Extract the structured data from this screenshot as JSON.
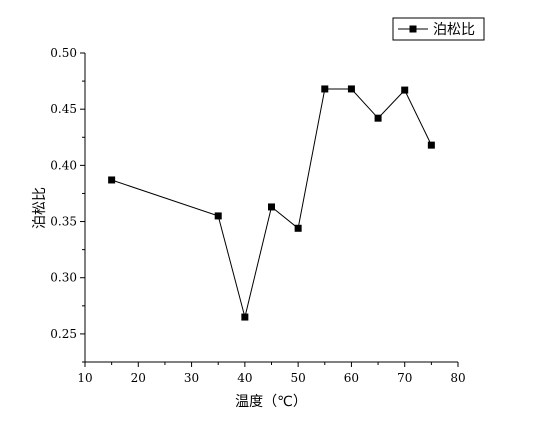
{
  "chart_data": {
    "type": "line",
    "xlabel": "温度（℃）",
    "ylabel": "泊松比",
    "xlim": [
      10,
      80
    ],
    "ylim": [
      0.225,
      0.5
    ],
    "x_ticks": [
      10,
      20,
      30,
      40,
      50,
      60,
      70,
      80
    ],
    "x_tick_labels": [
      "10",
      "20",
      "30",
      "40",
      "50",
      "60",
      "70",
      "80"
    ],
    "y_ticks": [
      0.25,
      0.3,
      0.35,
      0.4,
      0.45,
      0.5
    ],
    "y_tick_labels": [
      "0.25",
      "0.30",
      "0.35",
      "0.40",
      "0.45",
      "0.50"
    ],
    "grid": false,
    "legend_position": "top-right",
    "series": [
      {
        "name": "泊松比",
        "marker": "square",
        "color": "#000000",
        "x": [
          15,
          35,
          40,
          45,
          50,
          55,
          60,
          65,
          70,
          75
        ],
        "y": [
          0.387,
          0.355,
          0.265,
          0.363,
          0.344,
          0.468,
          0.468,
          0.442,
          0.467,
          0.418
        ]
      }
    ]
  }
}
